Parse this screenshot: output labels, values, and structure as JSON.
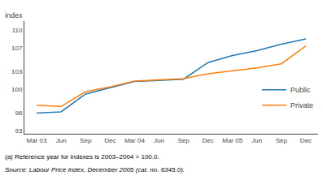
{
  "chart_data": {
    "type": "line",
    "ylabel": "index",
    "categories": [
      "Mar 03",
      "Jun",
      "Sep",
      "Dec",
      "Mar 04",
      "Jun",
      "Sep",
      "Dec",
      "Mar 05",
      "Jun",
      "Sep",
      "Dec"
    ],
    "series": [
      {
        "name": "Public",
        "values": [
          96.0,
          96.2,
          99.2,
          100.3,
          101.3,
          101.5,
          101.7,
          104.5,
          105.7,
          106.5,
          107.6,
          108.5
        ]
      },
      {
        "name": "Private",
        "values": [
          97.3,
          97.1,
          99.6,
          100.4,
          101.4,
          101.6,
          101.8,
          102.6,
          103.1,
          103.6,
          104.3,
          107.3
        ]
      }
    ],
    "ylim": [
      92.5,
      111.5
    ],
    "yticks": [
      93,
      96,
      100,
      103,
      107,
      110
    ],
    "grid": false,
    "legend": "right",
    "annotations": [
      "(a) Reference year for indexes is 2003–2004 = 100.0.",
      "Source: Labour Price Index, December 2005 (cat. no. 6345.0)."
    ]
  }
}
